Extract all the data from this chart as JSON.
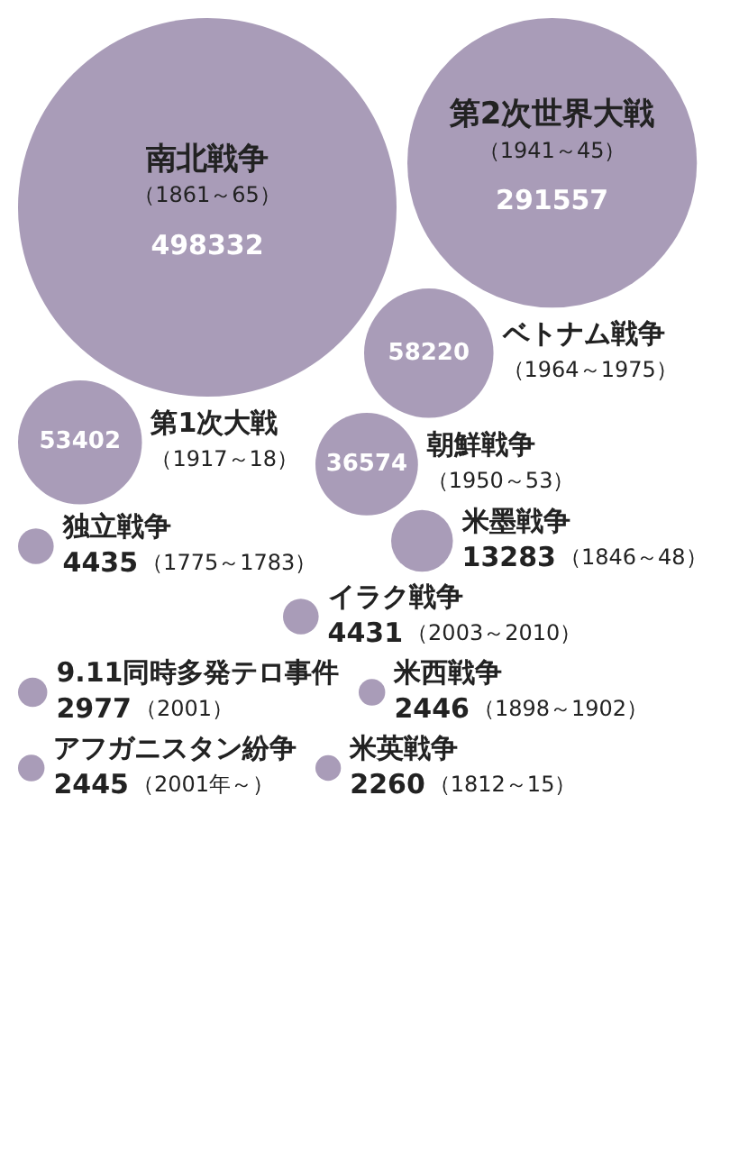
{
  "chart_data": {
    "type": "other",
    "color": "#a99cb8",
    "data_labels": true,
    "categories": [
      "アフガニスタン紛争",
      "イラク戦争",
      "9.11同時多発テロ事件",
      "ベトナム戦争",
      "第2次世界大戦",
      "朝鮮戦争",
      "第1次大戦",
      "南北戦争",
      "米西戦争",
      "米墨戦争",
      "米英戦争",
      "独立戦争"
    ],
    "values": [
      2445,
      4431,
      2977,
      58220,
      291557,
      36574,
      53402,
      498332,
      2446,
      13283,
      2260,
      4435
    ],
    "annotations": [
      {
        "text": "（2001年～）",
        "x": "アフガニスタン紛争"
      },
      {
        "text": "（2003～2010）",
        "x": "イラク戦争"
      },
      {
        "text": "（2001）",
        "x": "9.11同時多発テロ事件"
      },
      {
        "text": "（1964～1975）",
        "x": "ベトナム戦争"
      },
      {
        "text": "（1941～45）",
        "x": "第2次世界大戦"
      },
      {
        "text": "（1950～53）",
        "x": "朝鮮戦争"
      },
      {
        "text": "（1917～18）",
        "x": "第1次大戦"
      },
      {
        "text": "（1861～65）",
        "x": "南北戦争"
      },
      {
        "text": "（1898～1902）",
        "x": "米西戦争"
      },
      {
        "text": "（1846～48）",
        "x": "米墨戦争"
      },
      {
        "text": "（1812～15）",
        "x": "米英戦争"
      },
      {
        "text": "（1775～1783）",
        "x": "独立戦争"
      }
    ]
  }
}
